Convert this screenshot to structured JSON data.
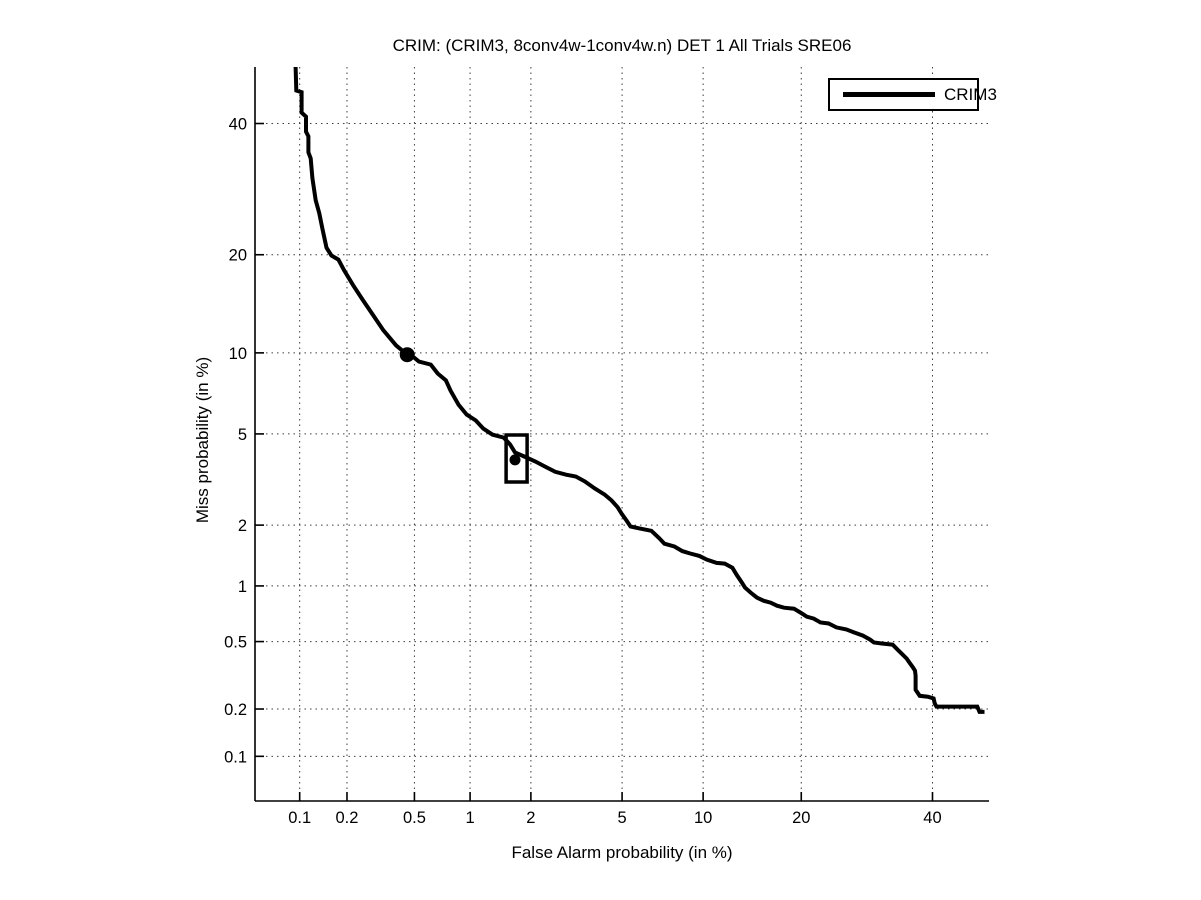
{
  "figure": {
    "background_color": "#ffffff",
    "line_color": "#000000",
    "grid_color": "#3d3d3d"
  },
  "chart_data": {
    "type": "line",
    "subtype": "DET-curve (normal deviate scale on both axes)",
    "title": "CRIM: (CRIM3, 8conv4w-1conv4w.n) DET 1 All Trials SRE06",
    "xlabel": "False Alarm probability (in %)",
    "ylabel": "Miss probability (in %)",
    "grid": true,
    "axis_min_pct": 0.05,
    "axis_max_pct": 50,
    "x_ticks": [
      0.1,
      0.2,
      0.5,
      1,
      2,
      5,
      10,
      20,
      40
    ],
    "x_tick_labels": [
      "0.1",
      "0.2",
      "0.5",
      "1",
      "2",
      "5",
      "10",
      "20",
      "40"
    ],
    "y_ticks": [
      40,
      20,
      10,
      5,
      2,
      1,
      0.5,
      0.2,
      0.1
    ],
    "y_tick_labels": [
      "40",
      "20",
      "10",
      "5",
      "2",
      "1",
      "0.5",
      "0.2",
      "0.1"
    ],
    "legend": {
      "position": "top-right",
      "entries": [
        {
          "label": "CRIM3",
          "color": "#000000",
          "line_width": 5
        }
      ]
    },
    "series": [
      {
        "name": "CRIM3",
        "color": "#000000",
        "points": [
          [
            0.094,
            50.0
          ],
          [
            0.095,
            45.8
          ],
          [
            0.103,
            45.5
          ],
          [
            0.103,
            41.9
          ],
          [
            0.11,
            41.2
          ],
          [
            0.11,
            38.6
          ],
          [
            0.114,
            37.8
          ],
          [
            0.114,
            35.1
          ],
          [
            0.118,
            34.1
          ],
          [
            0.121,
            30.9
          ],
          [
            0.127,
            27.5
          ],
          [
            0.134,
            25.6
          ],
          [
            0.14,
            23.5
          ],
          [
            0.149,
            20.9
          ],
          [
            0.16,
            19.9
          ],
          [
            0.177,
            19.4
          ],
          [
            0.192,
            18.1
          ],
          [
            0.218,
            16.4
          ],
          [
            0.25,
            14.8
          ],
          [
            0.288,
            13.3
          ],
          [
            0.331,
            11.9
          ],
          [
            0.393,
            10.6
          ],
          [
            0.455,
            9.86
          ],
          [
            0.497,
            9.64
          ],
          [
            0.53,
            9.34
          ],
          [
            0.617,
            9.11
          ],
          [
            0.673,
            8.47
          ],
          [
            0.745,
            8.0
          ],
          [
            0.79,
            7.34
          ],
          [
            0.87,
            6.51
          ],
          [
            0.96,
            5.96
          ],
          [
            1.07,
            5.65
          ],
          [
            1.17,
            5.25
          ],
          [
            1.3,
            4.97
          ],
          [
            1.48,
            4.83
          ],
          [
            1.59,
            4.53
          ],
          [
            1.68,
            4.2
          ],
          [
            1.86,
            4.04
          ],
          [
            2.1,
            3.85
          ],
          [
            2.33,
            3.66
          ],
          [
            2.59,
            3.48
          ],
          [
            2.9,
            3.38
          ],
          [
            3.2,
            3.32
          ],
          [
            3.5,
            3.16
          ],
          [
            3.86,
            2.94
          ],
          [
            4.25,
            2.76
          ],
          [
            4.53,
            2.6
          ],
          [
            4.8,
            2.42
          ],
          [
            4.98,
            2.26
          ],
          [
            5.21,
            2.1
          ],
          [
            5.4,
            1.97
          ],
          [
            5.86,
            1.93
          ],
          [
            6.51,
            1.88
          ],
          [
            6.97,
            1.73
          ],
          [
            7.28,
            1.63
          ],
          [
            7.92,
            1.58
          ],
          [
            8.46,
            1.5
          ],
          [
            9.02,
            1.46
          ],
          [
            9.7,
            1.42
          ],
          [
            10.3,
            1.36
          ],
          [
            11.1,
            1.31
          ],
          [
            11.8,
            1.3
          ],
          [
            12.5,
            1.24
          ],
          [
            12.9,
            1.14
          ],
          [
            13.4,
            1.04
          ],
          [
            13.7,
            0.98
          ],
          [
            14.3,
            0.92
          ],
          [
            14.9,
            0.87
          ],
          [
            15.6,
            0.837
          ],
          [
            16.4,
            0.816
          ],
          [
            17.1,
            0.787
          ],
          [
            17.9,
            0.768
          ],
          [
            19.1,
            0.758
          ],
          [
            19.9,
            0.722
          ],
          [
            20.7,
            0.686
          ],
          [
            21.6,
            0.67
          ],
          [
            22.5,
            0.638
          ],
          [
            23.6,
            0.63
          ],
          [
            24.7,
            0.6
          ],
          [
            26.1,
            0.585
          ],
          [
            27.3,
            0.562
          ],
          [
            28.6,
            0.54
          ],
          [
            29.7,
            0.513
          ],
          [
            30.3,
            0.494
          ],
          [
            31.7,
            0.487
          ],
          [
            33.3,
            0.48
          ],
          [
            34.1,
            0.45
          ],
          [
            35.0,
            0.42
          ],
          [
            35.6,
            0.4
          ],
          [
            36.1,
            0.378
          ],
          [
            36.6,
            0.358
          ],
          [
            37.0,
            0.34
          ],
          [
            37.1,
            0.318
          ],
          [
            37.1,
            0.262
          ],
          [
            37.8,
            0.241
          ],
          [
            39.2,
            0.238
          ],
          [
            40.2,
            0.232
          ],
          [
            40.4,
            0.216
          ],
          [
            40.7,
            0.207
          ],
          [
            43.3,
            0.207
          ],
          [
            47.9,
            0.207
          ],
          [
            48.3,
            0.192
          ],
          [
            49.2,
            0.192
          ]
        ]
      }
    ],
    "markers": {
      "min_dcf_point": {
        "shape": "filled-circle",
        "fa": 0.455,
        "miss": 9.86
      },
      "actual_dcf_point": {
        "shape": "dot-in-open-rectangle",
        "fa": 1.68,
        "miss": 3.91,
        "rect_fa": [
          1.52,
          1.92
        ],
        "rect_miss": [
          3.14,
          4.95
        ]
      }
    }
  }
}
